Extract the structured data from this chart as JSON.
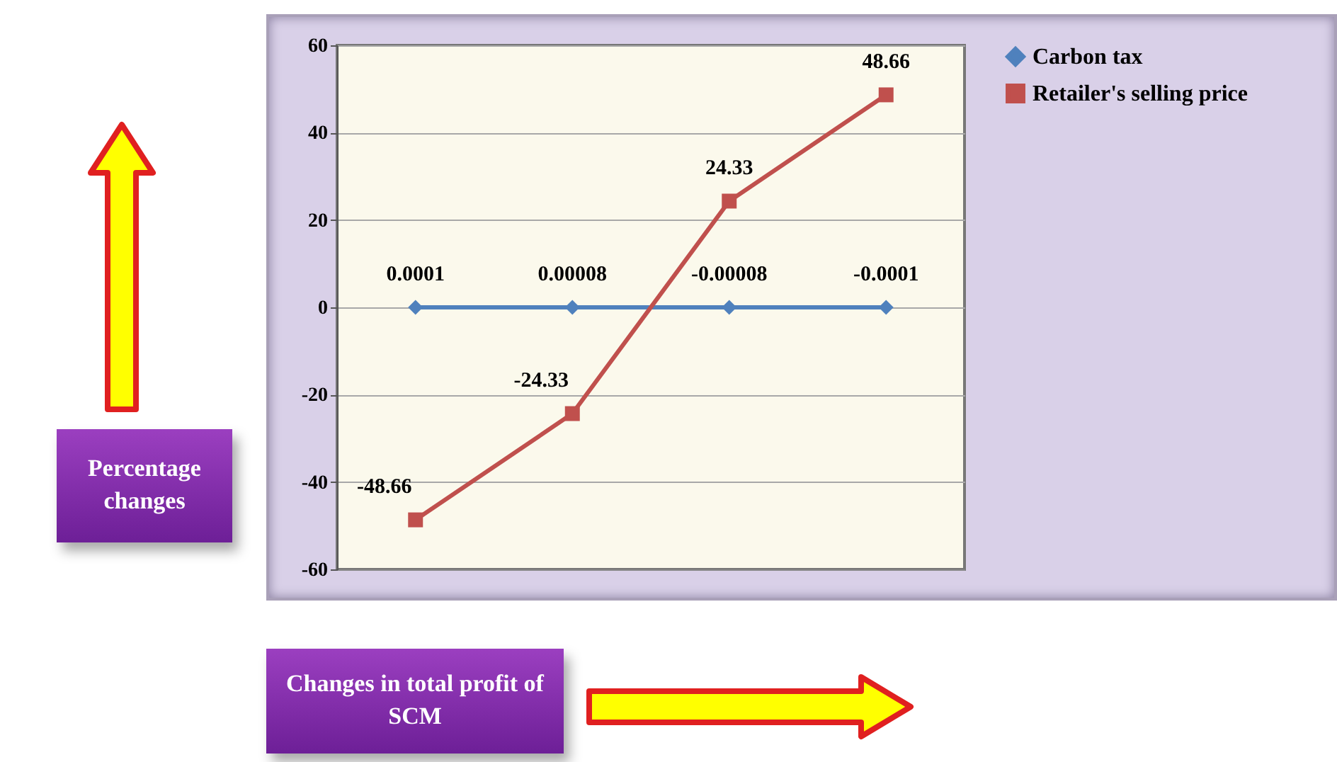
{
  "chart_data": {
    "type": "line",
    "annotations": [
      "Percentage changes",
      "Changes in total profit of SCM"
    ],
    "categories": [
      null,
      null,
      null,
      null
    ],
    "series": [
      {
        "name": "Carbon tax",
        "color": "#4f81bd",
        "marker": "diamond",
        "values": [
          0.0001,
          8e-05,
          -8e-05,
          -0.0001
        ],
        "value_labels": [
          "0.0001",
          "0.00008",
          "-0.00008",
          "-0.0001"
        ]
      },
      {
        "name": "Retailer's selling price",
        "color": "#c0504d",
        "marker": "square",
        "values": [
          -48.66,
          -24.33,
          24.33,
          48.66
        ],
        "value_labels": [
          "-48.66",
          "-24.33",
          "24.33",
          "48.66"
        ]
      }
    ],
    "ylim": [
      -60,
      60
    ],
    "yticks": [
      -60,
      -40,
      -20,
      0,
      20,
      40,
      60
    ],
    "grid": "y",
    "legend": "right",
    "tick_labels": "y"
  }
}
